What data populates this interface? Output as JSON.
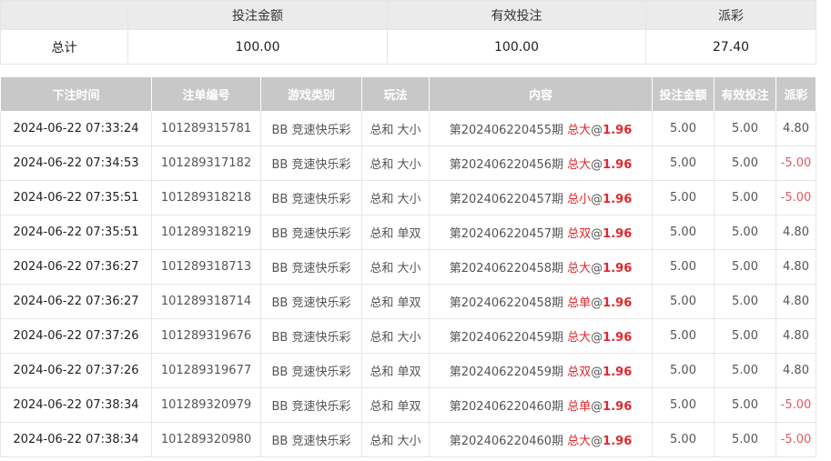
{
  "summary": {
    "headers": [
      "",
      "投注金额",
      "有效投注",
      "派彩"
    ],
    "row_label": "总计",
    "bet_amount": "100.00",
    "valid_bet": "100.00",
    "payout": "27.40"
  },
  "bets": {
    "headers": [
      "下注时间",
      "注单编号",
      "游戏类别",
      "玩法",
      "内容",
      "投注金额",
      "有效投注",
      "派彩"
    ],
    "colors": {
      "header_bg": "#c8c8c8",
      "accent_red": "#e2262b",
      "negative": "#e05a66"
    },
    "rows": [
      {
        "time": "2024-06-22 07:33:24",
        "id": "101289315781",
        "game": "BB 竞速快乐彩",
        "play": "总和 大小",
        "period": "第202406220455期",
        "pick": "总大",
        "at": "@",
        "odds": "1.96",
        "amount": "5.00",
        "valid": "5.00",
        "payout": "4.80"
      },
      {
        "time": "2024-06-22 07:34:53",
        "id": "101289317182",
        "game": "BB 竞速快乐彩",
        "play": "总和 大小",
        "period": "第202406220456期",
        "pick": "总大",
        "at": "@",
        "odds": "1.96",
        "amount": "5.00",
        "valid": "5.00",
        "payout": "-5.00"
      },
      {
        "time": "2024-06-22 07:35:51",
        "id": "101289318218",
        "game": "BB 竞速快乐彩",
        "play": "总和 大小",
        "period": "第202406220457期",
        "pick": "总小",
        "at": "@",
        "odds": "1.96",
        "amount": "5.00",
        "valid": "5.00",
        "payout": "-5.00"
      },
      {
        "time": "2024-06-22 07:35:51",
        "id": "101289318219",
        "game": "BB 竞速快乐彩",
        "play": "总和 单双",
        "period": "第202406220457期",
        "pick": "总双",
        "at": "@",
        "odds": "1.96",
        "amount": "5.00",
        "valid": "5.00",
        "payout": "4.80"
      },
      {
        "time": "2024-06-22 07:36:27",
        "id": "101289318713",
        "game": "BB 竞速快乐彩",
        "play": "总和 大小",
        "period": "第202406220458期",
        "pick": "总大",
        "at": "@",
        "odds": "1.96",
        "amount": "5.00",
        "valid": "5.00",
        "payout": "4.80"
      },
      {
        "time": "2024-06-22 07:36:27",
        "id": "101289318714",
        "game": "BB 竞速快乐彩",
        "play": "总和 单双",
        "period": "第202406220458期",
        "pick": "总单",
        "at": "@",
        "odds": "1.96",
        "amount": "5.00",
        "valid": "5.00",
        "payout": "4.80"
      },
      {
        "time": "2024-06-22 07:37:26",
        "id": "101289319676",
        "game": "BB 竞速快乐彩",
        "play": "总和 大小",
        "period": "第202406220459期",
        "pick": "总大",
        "at": "@",
        "odds": "1.96",
        "amount": "5.00",
        "valid": "5.00",
        "payout": "4.80"
      },
      {
        "time": "2024-06-22 07:37:26",
        "id": "101289319677",
        "game": "BB 竞速快乐彩",
        "play": "总和 单双",
        "period": "第202406220459期",
        "pick": "总双",
        "at": "@",
        "odds": "1.96",
        "amount": "5.00",
        "valid": "5.00",
        "payout": "4.80"
      },
      {
        "time": "2024-06-22 07:38:34",
        "id": "101289320979",
        "game": "BB 竞速快乐彩",
        "play": "总和 单双",
        "period": "第202406220460期",
        "pick": "总单",
        "at": "@",
        "odds": "1.96",
        "amount": "5.00",
        "valid": "5.00",
        "payout": "-5.00"
      },
      {
        "time": "2024-06-22 07:38:34",
        "id": "101289320980",
        "game": "BB 竞速快乐彩",
        "play": "总和 大小",
        "period": "第202406220460期",
        "pick": "总大",
        "at": "@",
        "odds": "1.96",
        "amount": "5.00",
        "valid": "5.00",
        "payout": "-5.00"
      }
    ]
  }
}
